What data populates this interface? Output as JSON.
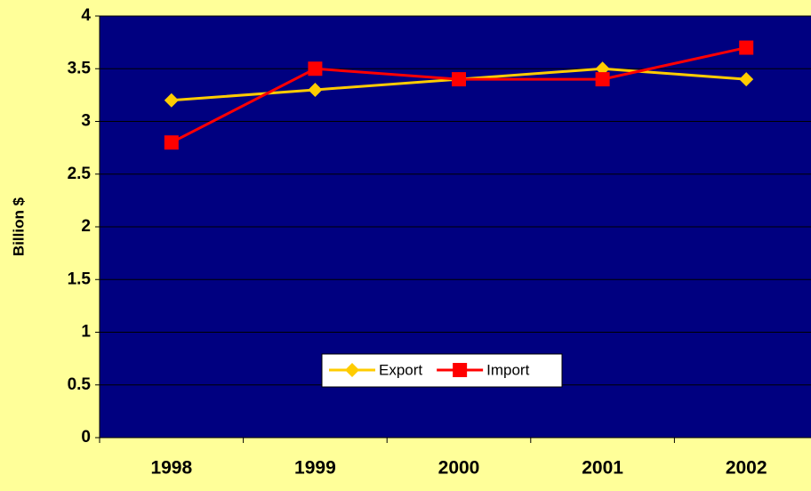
{
  "chart_data": {
    "type": "line",
    "y_label": "Billion $",
    "categories": [
      "1998",
      "1999",
      "2000",
      "2001",
      "2002"
    ],
    "series": [
      {
        "name": "Export",
        "color": "#FFCC00",
        "marker": "diamond",
        "values": [
          3.2,
          3.3,
          3.4,
          3.5,
          3.4
        ]
      },
      {
        "name": "Import",
        "color": "#FF0000",
        "marker": "square",
        "values": [
          2.8,
          3.5,
          3.4,
          3.4,
          3.7
        ]
      }
    ],
    "ylim": [
      0,
      4
    ],
    "yticks": [
      0,
      0.5,
      1,
      1.5,
      2,
      2.5,
      3,
      3.5,
      4
    ],
    "grid": true,
    "background": "#FFFF99",
    "plot_background": "#000080"
  }
}
